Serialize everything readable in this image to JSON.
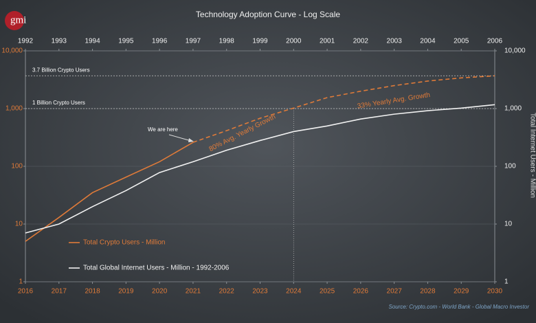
{
  "chart_data": {
    "type": "line",
    "title": "Technology Adoption Curve - Log Scale",
    "logo": "gmi",
    "y2label": "Total Internet Users - Million",
    "log_scale": true,
    "grid": true,
    "legend": "lower left",
    "xlim": [
      2016,
      2030
    ],
    "xticks": [
      2016,
      2017,
      2018,
      2019,
      2020,
      2021,
      2022,
      2023,
      2024,
      2025,
      2026,
      2027,
      2028,
      2029,
      2030
    ],
    "x2lim": [
      1992,
      2006
    ],
    "x2ticks": [
      1992,
      1993,
      1994,
      1995,
      1996,
      1997,
      1998,
      1999,
      2000,
      2001,
      2002,
      2003,
      2004,
      2005,
      2006
    ],
    "ylim": [
      1,
      10000
    ],
    "yticks": [
      1,
      10,
      100,
      {
        "value": 1000,
        "label": "1,000"
      },
      {
        "value": 10000,
        "label": "10,000"
      }
    ],
    "y2lim": [
      1,
      10000
    ],
    "y2ticks": [
      1,
      10,
      100,
      {
        "value": 1000,
        "label": "1,000"
      },
      {
        "value": 10000,
        "label": "10,000"
      }
    ],
    "series": [
      {
        "name": "Total Crypto Users - Million",
        "color": "#e07b39",
        "style": "solid",
        "x": [
          2016,
          2017,
          2018,
          2019,
          2020,
          2021
        ],
        "values": [
          5,
          13,
          35,
          65,
          120,
          260
        ]
      },
      {
        "color": "#e07b39",
        "style": "dashed",
        "x": [
          2021,
          2022,
          2023,
          2024,
          2025,
          2026,
          2027,
          2028,
          2029,
          2030
        ],
        "values": [
          260,
          415,
          680,
          1020,
          1550,
          2000,
          2500,
          3000,
          3400,
          3700
        ]
      },
      {
        "name": "Total Global Internet Users - Million - 1992-2006",
        "color": "#f2f2f2",
        "style": "solid",
        "axis": "x2",
        "x": [
          1992,
          1993,
          1994,
          1995,
          1996,
          1997,
          1998,
          1999,
          2000,
          2001,
          2002,
          2003,
          2004,
          2005,
          2006
        ],
        "values": [
          7,
          10,
          20,
          38,
          78,
          120,
          190,
          280,
          400,
          500,
          660,
          800,
          920,
          1020,
          1170
        ]
      }
    ],
    "reference_lines": [
      {
        "value": 3700,
        "label": "3.7 Billion Crypto Users"
      },
      {
        "value": 1000,
        "label": "1 Billion Crypto Users"
      }
    ],
    "vline": 2024,
    "annotations": [
      "We are here",
      "80% Avg. Yearly Growth",
      "33% Yearly Avg. Growth"
    ],
    "source": "Source:   Crypto.com - World Bank - Global Macro Investor"
  }
}
